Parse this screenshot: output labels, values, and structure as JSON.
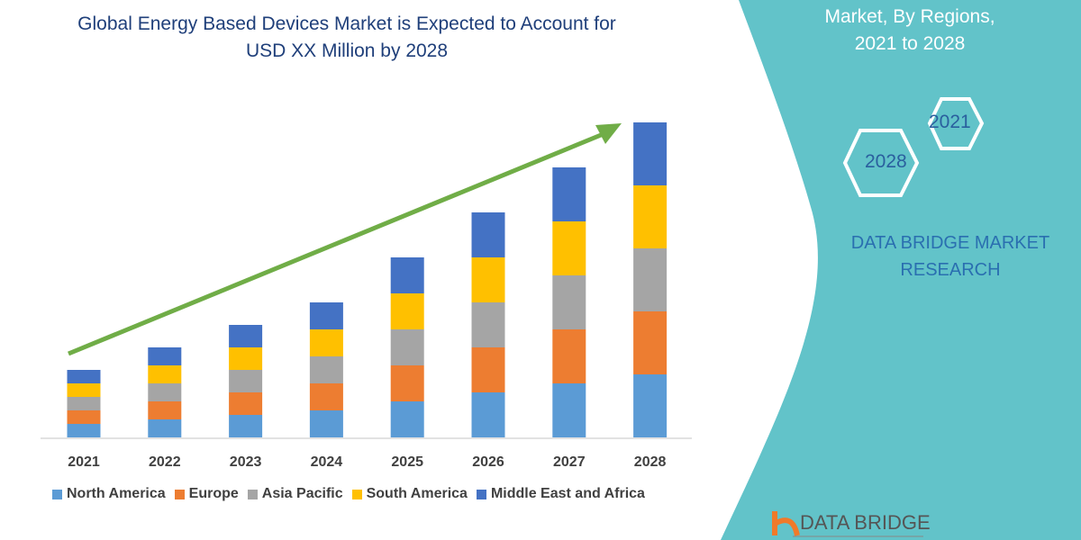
{
  "title_lines": [
    "Global Energy Based Devices Market is Expected to Account for",
    "USD XX Million by 2028"
  ],
  "side_panel": {
    "title_lines": [
      "Market, By Regions,",
      "2021 to 2028"
    ],
    "hex_labels": [
      "2021",
      "2028"
    ],
    "brand_lines": [
      "DATA BRIDGE MARKET",
      "RESEARCH"
    ],
    "logo_text": "DATA BRIDGE",
    "panel_color": "#62c3c9"
  },
  "chart_data": {
    "type": "bar",
    "stacked": true,
    "title": "Global Energy Based Devices Market is Expected to Account for USD XX Million by 2028",
    "categories": [
      "2021",
      "2022",
      "2023",
      "2024",
      "2025",
      "2026",
      "2027",
      "2028"
    ],
    "ylim": [
      0,
      360
    ],
    "grid": false,
    "legend_position": "bottom",
    "trend_arrow": true,
    "series": [
      {
        "name": "North America",
        "color": "#5b9bd5",
        "values": [
          15,
          20,
          25,
          30,
          40,
          50,
          60,
          70
        ]
      },
      {
        "name": "Europe",
        "color": "#ed7d31",
        "values": [
          15,
          20,
          25,
          30,
          40,
          50,
          60,
          70
        ]
      },
      {
        "name": "Asia Pacific",
        "color": "#a5a5a5",
        "values": [
          15,
          20,
          25,
          30,
          40,
          50,
          60,
          70
        ]
      },
      {
        "name": "South America",
        "color": "#ffc000",
        "values": [
          15,
          20,
          25,
          30,
          40,
          50,
          60,
          70
        ]
      },
      {
        "name": "Middle East and Africa",
        "color": "#4472c4",
        "values": [
          15,
          20,
          25,
          30,
          40,
          50,
          60,
          70
        ]
      }
    ],
    "arrow_color": "#70ad47"
  }
}
